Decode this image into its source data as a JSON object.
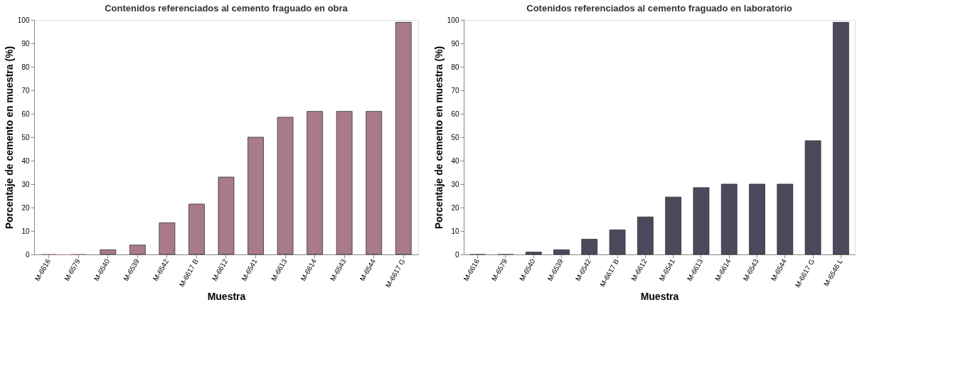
{
  "chart_data": [
    {
      "type": "bar",
      "title": "Contenidos referenciados al cemento fraguado en obra",
      "xlabel": "Muestra",
      "ylabel": "Porcentaje de cemento en muestra (%)",
      "categories": [
        "M-6616",
        "M-6579",
        "M-6540",
        "M-6539",
        "M-6542",
        "M-6617 B",
        "M-6612",
        "M-6541",
        "M-6613",
        "M-6614",
        "M-6543",
        "M-6544",
        "M-6617 G"
      ],
      "values": [
        0,
        0,
        2,
        4,
        13.5,
        21.5,
        33,
        50,
        58.5,
        61,
        61,
        61,
        99
      ],
      "color": "#a87a8c",
      "ylim": [
        0,
        100
      ],
      "yticks": [
        0,
        10,
        20,
        30,
        40,
        50,
        60,
        70,
        80,
        90,
        100
      ],
      "grid": false
    },
    {
      "type": "bar",
      "title": "Cotenidos referenciados al cemento fraguado en laboratorio",
      "xlabel": "Muestra",
      "ylabel": "Porcentaje de cemento en muestra (%)",
      "categories": [
        "M-6616",
        "M-6579",
        "M-6540",
        "M-6539",
        "M-6542",
        "M-6617 B",
        "M-6612",
        "M-6541",
        "M-6613",
        "M-6614",
        "M-6543",
        "M-6544",
        "M-6617 G",
        "M-6546 L"
      ],
      "values": [
        0,
        0,
        1,
        2,
        6.5,
        10.5,
        16,
        24.5,
        28.5,
        30,
        30,
        30,
        48.5,
        99
      ],
      "color": "#4b4a5c",
      "ylim": [
        0,
        100
      ],
      "yticks": [
        0,
        10,
        20,
        30,
        40,
        50,
        60,
        70,
        80,
        90,
        100
      ],
      "grid": false
    }
  ]
}
